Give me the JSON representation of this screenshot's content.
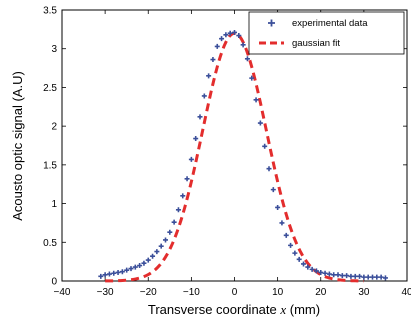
{
  "chart_data": {
    "type": "scatter",
    "xlabel": {
      "prefix": "Transverse coordinate ",
      "variable": "x",
      "suffix": " (mm)"
    },
    "ylabel": "Acousto optic signal (A.U)",
    "xlim": [
      -40,
      40
    ],
    "ylim": [
      0,
      3.5
    ],
    "xticks": [
      -40,
      -30,
      -20,
      -10,
      0,
      10,
      20,
      30,
      40
    ],
    "yticks": [
      0,
      0.5,
      1,
      1.5,
      2,
      2.5,
      3,
      3.5
    ],
    "xtick_labels": [
      "−40",
      "−30",
      "−20",
      "−10",
      "0",
      "10",
      "20",
      "30",
      "40"
    ],
    "ytick_labels": [
      "0",
      "0.5",
      "1",
      "1.5",
      "2",
      "2.5",
      "3",
      "3.5"
    ],
    "grid": false,
    "legend_position": "top-right",
    "series": [
      {
        "name": "experimental data",
        "kind": "points",
        "marker": "plus",
        "color": "#3b4f9a",
        "x": [
          -31,
          -30,
          -29,
          -28,
          -27,
          -26,
          -25,
          -24,
          -23,
          -22,
          -21,
          -20,
          -19,
          -18,
          -17,
          -16,
          -15,
          -14,
          -13,
          -12,
          -11,
          -10,
          -9,
          -8,
          -7,
          -6,
          -5,
          -4,
          -3,
          -2,
          -1,
          0,
          1,
          2,
          3,
          4,
          5,
          6,
          7,
          8,
          9,
          10,
          11,
          12,
          13,
          14,
          15,
          16,
          17,
          18,
          19,
          20,
          21,
          22,
          23,
          24,
          25,
          26,
          27,
          28,
          29,
          30,
          31,
          32,
          33,
          34,
          35
        ],
        "y": [
          0.06,
          0.08,
          0.09,
          0.1,
          0.11,
          0.12,
          0.14,
          0.16,
          0.18,
          0.2,
          0.23,
          0.27,
          0.32,
          0.38,
          0.45,
          0.53,
          0.63,
          0.76,
          0.92,
          1.1,
          1.32,
          1.57,
          1.84,
          2.12,
          2.39,
          2.65,
          2.86,
          3.03,
          3.13,
          3.18,
          3.2,
          3.21,
          3.17,
          3.05,
          2.87,
          2.62,
          2.34,
          2.04,
          1.74,
          1.45,
          1.18,
          0.95,
          0.75,
          0.59,
          0.46,
          0.36,
          0.28,
          0.22,
          0.18,
          0.15,
          0.13,
          0.11,
          0.1,
          0.09,
          0.08,
          0.08,
          0.07,
          0.07,
          0.06,
          0.06,
          0.06,
          0.05,
          0.05,
          0.05,
          0.05,
          0.05,
          0.04
        ]
      },
      {
        "name": "gaussian fit",
        "kind": "curve",
        "line_style": "dashed",
        "color": "#e32d2d",
        "amplitude": 3.2,
        "center": 0,
        "sigma": 7.4,
        "x_range": [
          -30,
          30
        ]
      }
    ]
  }
}
